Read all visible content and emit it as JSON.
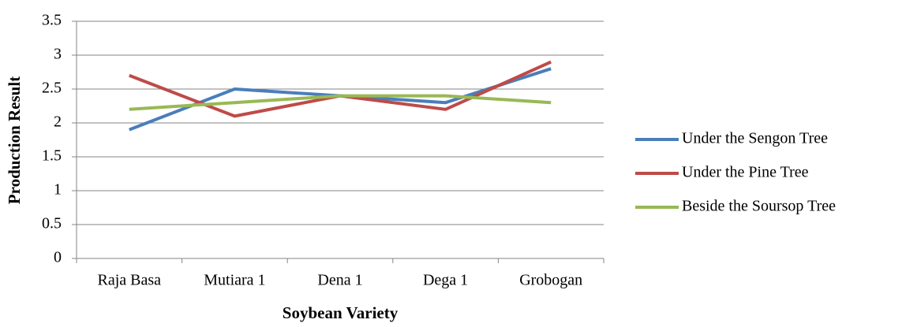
{
  "chart_data": {
    "type": "line",
    "x_label": "Soybean Variety",
    "y_label": "Production Result",
    "categories": [
      "Raja Basa",
      "Mutiara 1",
      "Dena 1",
      "Dega 1",
      "Grobogan"
    ],
    "series": [
      {
        "name": "Under the Sengon Tree",
        "color": "#4a7ebb",
        "values": [
          1.9,
          2.5,
          2.4,
          2.3,
          2.8
        ]
      },
      {
        "name": "Under the Pine Tree",
        "color": "#be4b48",
        "values": [
          2.7,
          2.1,
          2.4,
          2.2,
          2.9
        ]
      },
      {
        "name": "Beside the Soursop Tree",
        "color": "#98b954",
        "values": [
          2.2,
          2.3,
          2.4,
          2.4,
          2.3
        ]
      }
    ],
    "ylim": [
      0,
      3.5
    ],
    "yticks": [
      0,
      0.5,
      1,
      1.5,
      2,
      2.5,
      3,
      3.5
    ],
    "grid": true,
    "legend": "right"
  }
}
